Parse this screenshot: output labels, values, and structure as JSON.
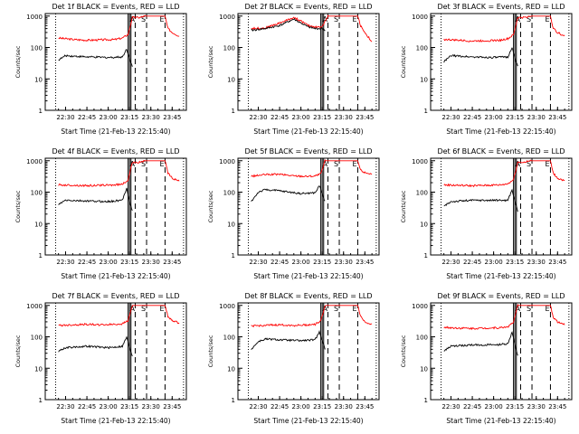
{
  "figure": {
    "type": "multi-panel time series",
    "layout": "3x3",
    "colors": {
      "events": "#000000",
      "lld": "#ff0000",
      "axes": "#000000",
      "background": "#ffffff"
    }
  },
  "chart_data": [
    {
      "type": "line",
      "title": "Det 1f BLACK = Events, RED = LLD",
      "xlabel": "Start Time (21-Feb-13 22:15:40)",
      "ylabel": "Counts/sec",
      "yscale": "log",
      "ylim": [
        1,
        1200
      ],
      "xlim": [
        "22:15:40",
        "23:55:00"
      ],
      "xticks": [
        "22:30",
        "22:45",
        "23:00",
        "23:15",
        "23:30",
        "23:45"
      ],
      "yticks": [
        "1",
        "10",
        "100",
        "1000"
      ],
      "attenuator_markers": [
        "A",
        "S",
        "E"
      ],
      "series": [
        {
          "color": "red",
          "x": [
            "22:25",
            "22:35",
            "22:45",
            "22:55",
            "23:05",
            "23:10",
            "23:14",
            "23:17",
            "23:22",
            "23:26",
            "23:29",
            "23:32",
            "23:40",
            "23:42",
            "23:45",
            "23:50"
          ],
          "values": [
            200,
            180,
            170,
            175,
            180,
            200,
            260,
            900,
            900,
            1000,
            1000,
            1000,
            1000,
            400,
            300,
            230
          ]
        },
        {
          "color": "black",
          "x": [
            "22:25",
            "22:30",
            "22:45",
            "23:00",
            "23:10",
            "23:13",
            "23:15",
            "23:17"
          ],
          "values": [
            40,
            55,
            50,
            48,
            50,
            90,
            45,
            25
          ]
        }
      ]
    },
    {
      "type": "line",
      "title": "Det 2f BLACK = Events, RED = LLD",
      "xlabel": "Start Time (21-Feb-13 22:15:40)",
      "ylabel": "Counts/sec",
      "yscale": "log",
      "ylim": [
        1,
        1200
      ],
      "xlim": [
        "22:15:40",
        "23:55:00"
      ],
      "xticks": [
        "22:30",
        "22:45",
        "23:00",
        "23:15",
        "23:30",
        "23:45"
      ],
      "yticks": [
        "1",
        "10",
        "100",
        "1000"
      ],
      "attenuator_markers": [
        "A",
        "S",
        "E"
      ],
      "series": [
        {
          "color": "red",
          "x": [
            "22:25",
            "22:35",
            "22:45",
            "22:55",
            "23:00",
            "23:05",
            "23:10",
            "23:15",
            "23:19",
            "23:22",
            "23:26",
            "23:29",
            "23:40",
            "23:42",
            "23:45",
            "23:50"
          ],
          "values": [
            400,
            420,
            600,
            900,
            700,
            500,
            450,
            450,
            1000,
            1000,
            1000,
            1000,
            1000,
            500,
            300,
            150
          ]
        },
        {
          "color": "black",
          "x": [
            "22:25",
            "22:35",
            "22:45",
            "22:55",
            "23:00",
            "23:05",
            "23:10",
            "23:15",
            "23:17"
          ],
          "values": [
            350,
            400,
            500,
            800,
            600,
            450,
            400,
            400,
            350
          ]
        }
      ]
    },
    {
      "type": "line",
      "title": "Det 3f BLACK = Events, RED = LLD",
      "xlabel": "Start Time (21-Feb-13 22:15:40)",
      "ylabel": "Counts/sec",
      "yscale": "log",
      "ylim": [
        1,
        1200
      ],
      "xlim": [
        "22:15:40",
        "23:55:00"
      ],
      "xticks": [
        "22:30",
        "22:45",
        "23:00",
        "23:15",
        "23:30",
        "23:45"
      ],
      "yticks": [
        "1",
        "10",
        "100",
        "1000"
      ],
      "attenuator_markers": [
        "A",
        "S",
        "E"
      ],
      "series": [
        {
          "color": "red",
          "x": [
            "22:25",
            "22:35",
            "22:45",
            "22:55",
            "23:05",
            "23:10",
            "23:14",
            "23:17",
            "23:22",
            "23:26",
            "23:29",
            "23:32",
            "23:40",
            "23:42",
            "23:45",
            "23:50"
          ],
          "values": [
            180,
            170,
            160,
            165,
            170,
            190,
            250,
            900,
            900,
            1000,
            1000,
            1000,
            1000,
            400,
            300,
            230
          ]
        },
        {
          "color": "black",
          "x": [
            "22:25",
            "22:30",
            "22:45",
            "23:00",
            "23:10",
            "23:13",
            "23:15",
            "23:17"
          ],
          "values": [
            35,
            55,
            50,
            48,
            50,
            100,
            45,
            25
          ]
        }
      ]
    },
    {
      "type": "line",
      "title": "Det 4f BLACK = Events, RED = LLD",
      "xlabel": "Start Time (21-Feb-13 22:15:40)",
      "ylabel": "Counts/sec",
      "yscale": "log",
      "ylim": [
        1,
        1200
      ],
      "xlim": [
        "22:15:40",
        "23:55:00"
      ],
      "xticks": [
        "22:30",
        "22:45",
        "23:00",
        "23:15",
        "23:30",
        "23:45"
      ],
      "yticks": [
        "1",
        "10",
        "100",
        "1000"
      ],
      "attenuator_markers": [
        "A",
        "S",
        "E"
      ],
      "series": [
        {
          "color": "red",
          "x": [
            "22:25",
            "22:35",
            "22:45",
            "22:55",
            "23:05",
            "23:10",
            "23:14",
            "23:17",
            "23:22",
            "23:26",
            "23:29",
            "23:32",
            "23:40",
            "23:42",
            "23:45",
            "23:50"
          ],
          "values": [
            170,
            165,
            160,
            165,
            170,
            180,
            240,
            900,
            900,
            1000,
            1000,
            1000,
            1000,
            400,
            280,
            220
          ]
        },
        {
          "color": "black",
          "x": [
            "22:25",
            "22:30",
            "22:45",
            "23:00",
            "23:10",
            "23:13",
            "23:15",
            "23:17"
          ],
          "values": [
            40,
            55,
            52,
            50,
            55,
            140,
            50,
            25
          ]
        }
      ]
    },
    {
      "type": "line",
      "title": "Det 5f BLACK = Events, RED = LLD",
      "xlabel": "Start Time (21-Feb-13 22:15:40)",
      "ylabel": "Counts/sec",
      "yscale": "log",
      "ylim": [
        1,
        1200
      ],
      "xlim": [
        "22:15:40",
        "23:55:00"
      ],
      "xticks": [
        "22:30",
        "22:45",
        "23:00",
        "23:15",
        "23:30",
        "23:45"
      ],
      "yticks": [
        "1",
        "10",
        "100",
        "1000"
      ],
      "attenuator_markers": [
        "A",
        "S",
        "E"
      ],
      "series": [
        {
          "color": "red",
          "x": [
            "22:25",
            "22:35",
            "22:45",
            "22:55",
            "23:05",
            "23:10",
            "23:14",
            "23:17",
            "23:22",
            "23:26",
            "23:29",
            "23:32",
            "23:40",
            "23:42",
            "23:45",
            "23:50"
          ],
          "values": [
            320,
            360,
            370,
            330,
            320,
            330,
            380,
            1000,
            1000,
            1000,
            1000,
            1000,
            1000,
            500,
            420,
            380
          ]
        },
        {
          "color": "black",
          "x": [
            "22:25",
            "22:30",
            "22:35",
            "22:45",
            "23:00",
            "23:10",
            "23:13",
            "23:15",
            "23:17"
          ],
          "values": [
            50,
            100,
            120,
            110,
            90,
            95,
            160,
            90,
            50
          ]
        }
      ]
    },
    {
      "type": "line",
      "title": "Det 6f BLACK = Events, RED = LLD",
      "xlabel": "Start Time (21-Feb-13 22:15:40)",
      "ylabel": "Counts/sec",
      "yscale": "log",
      "ylim": [
        1,
        1200
      ],
      "xlim": [
        "22:15:40",
        "23:55:00"
      ],
      "xticks": [
        "22:30",
        "22:45",
        "23:00",
        "23:15",
        "23:30",
        "23:45"
      ],
      "yticks": [
        "1",
        "10",
        "100",
        "1000"
      ],
      "attenuator_markers": [
        "A",
        "S",
        "E"
      ],
      "series": [
        {
          "color": "red",
          "x": [
            "22:25",
            "22:35",
            "22:45",
            "22:55",
            "23:05",
            "23:10",
            "23:14",
            "23:17",
            "23:22",
            "23:26",
            "23:29",
            "23:32",
            "23:40",
            "23:42",
            "23:45",
            "23:50"
          ],
          "values": [
            170,
            165,
            160,
            165,
            170,
            185,
            250,
            900,
            900,
            1000,
            1000,
            1000,
            1000,
            400,
            280,
            230
          ]
        },
        {
          "color": "black",
          "x": [
            "22:25",
            "22:30",
            "22:45",
            "23:00",
            "23:10",
            "23:13",
            "23:15",
            "23:17"
          ],
          "values": [
            35,
            50,
            55,
            55,
            55,
            120,
            50,
            25
          ]
        }
      ]
    },
    {
      "type": "line",
      "title": "Det 7f BLACK = Events, RED = LLD",
      "xlabel": "Start Time (21-Feb-13 22:15:40)",
      "ylabel": "Counts/sec",
      "yscale": "log",
      "ylim": [
        1,
        1200
      ],
      "xlim": [
        "22:15:40",
        "23:55:00"
      ],
      "xticks": [
        "22:30",
        "22:45",
        "23:00",
        "23:15",
        "23:30",
        "23:45"
      ],
      "yticks": [
        "1",
        "10",
        "100",
        "1000"
      ],
      "attenuator_markers": [
        "A",
        "S",
        "E"
      ],
      "series": [
        {
          "color": "red",
          "x": [
            "22:25",
            "22:35",
            "22:45",
            "22:55",
            "23:05",
            "23:10",
            "23:14",
            "23:17",
            "23:22",
            "23:26",
            "23:29",
            "23:32",
            "23:40",
            "23:42",
            "23:45",
            "23:50"
          ],
          "values": [
            230,
            240,
            250,
            240,
            250,
            260,
            330,
            1000,
            1000,
            1000,
            1000,
            1000,
            1000,
            450,
            320,
            280
          ]
        },
        {
          "color": "black",
          "x": [
            "22:25",
            "22:30",
            "22:45",
            "23:00",
            "23:10",
            "23:13",
            "23:15",
            "23:17"
          ],
          "values": [
            35,
            45,
            50,
            45,
            50,
            100,
            45,
            25
          ]
        }
      ]
    },
    {
      "type": "line",
      "title": "Det 8f BLACK = Events, RED = LLD",
      "xlabel": "Start Time (21-Feb-13 22:15:40)",
      "ylabel": "Counts/sec",
      "yscale": "log",
      "ylim": [
        1,
        1200
      ],
      "xlim": [
        "22:15:40",
        "23:55:00"
      ],
      "xticks": [
        "22:30",
        "22:45",
        "23:00",
        "23:15",
        "23:30",
        "23:45"
      ],
      "yticks": [
        "1",
        "10",
        "100",
        "1000"
      ],
      "attenuator_markers": [
        "A",
        "S",
        "E"
      ],
      "series": [
        {
          "color": "red",
          "x": [
            "22:25",
            "22:35",
            "22:45",
            "22:55",
            "23:05",
            "23:10",
            "23:14",
            "23:17",
            "23:22",
            "23:26",
            "23:29",
            "23:32",
            "23:40",
            "23:42",
            "23:45",
            "23:50"
          ],
          "values": [
            220,
            230,
            240,
            230,
            240,
            250,
            320,
            1000,
            1000,
            1000,
            1000,
            1000,
            1000,
            450,
            300,
            250
          ]
        },
        {
          "color": "black",
          "x": [
            "22:25",
            "22:30",
            "22:35",
            "22:45",
            "23:00",
            "23:10",
            "23:13",
            "23:15",
            "23:17"
          ],
          "values": [
            40,
            70,
            85,
            80,
            75,
            80,
            150,
            75,
            40
          ]
        }
      ]
    },
    {
      "type": "line",
      "title": "Det 9f BLACK = Events, RED = LLD",
      "xlabel": "Start Time (21-Feb-13 22:15:40)",
      "ylabel": "Counts/sec",
      "yscale": "log",
      "ylim": [
        1,
        1200
      ],
      "xlim": [
        "22:15:40",
        "23:55:00"
      ],
      "xticks": [
        "22:30",
        "22:45",
        "23:00",
        "23:15",
        "23:30",
        "23:45"
      ],
      "yticks": [
        "1",
        "10",
        "100",
        "1000"
      ],
      "attenuator_markers": [
        "A",
        "S",
        "E"
      ],
      "series": [
        {
          "color": "red",
          "x": [
            "22:25",
            "22:35",
            "22:45",
            "22:55",
            "23:05",
            "23:10",
            "23:14",
            "23:17",
            "23:22",
            "23:26",
            "23:29",
            "23:32",
            "23:40",
            "23:42",
            "23:45",
            "23:50"
          ],
          "values": [
            200,
            190,
            185,
            190,
            195,
            210,
            290,
            1000,
            1000,
            1000,
            1000,
            1000,
            1000,
            420,
            300,
            240
          ]
        },
        {
          "color": "black",
          "x": [
            "22:25",
            "22:30",
            "22:45",
            "23:00",
            "23:10",
            "23:13",
            "23:15",
            "23:17"
          ],
          "values": [
            35,
            50,
            55,
            55,
            60,
            140,
            55,
            25
          ]
        }
      ]
    }
  ]
}
